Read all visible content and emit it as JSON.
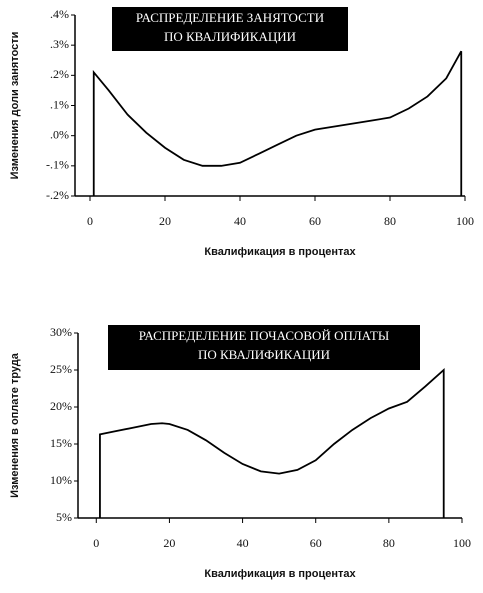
{
  "chart_data": [
    {
      "type": "area",
      "title": [
        "РАСПРЕДЕЛЕНИЕ ЗАНЯТОСТИ",
        "ПО КВАЛИФИКАЦИИ"
      ],
      "x_label": "Квалификация в процентах",
      "y_label": "Изменения доли занятости",
      "x": [
        1,
        5,
        10,
        15,
        20,
        25,
        30,
        35,
        40,
        45,
        50,
        55,
        60,
        65,
        70,
        75,
        80,
        85,
        90,
        95,
        99
      ],
      "values": [
        0.21,
        0.15,
        0.07,
        0.01,
        -0.04,
        -0.08,
        -0.1,
        -0.1,
        -0.09,
        -0.06,
        -0.03,
        0.0,
        0.02,
        0.03,
        0.04,
        0.05,
        0.06,
        0.09,
        0.13,
        0.19,
        0.28
      ],
      "color": "#000000",
      "xlim": [
        -4,
        100
      ],
      "xticks": [
        0,
        20,
        40,
        60,
        80,
        100
      ],
      "ylim": [
        -0.2,
        0.4
      ],
      "yticks": [
        {
          "value": -0.2,
          "label": "-.2%"
        },
        {
          "value": -0.1,
          "label": "-.1%"
        },
        {
          "value": 0,
          "label": ".0%"
        },
        {
          "value": 0.1,
          "label": ".1%"
        },
        {
          "value": 0.2,
          "label": ".2%"
        },
        {
          "value": 0.3,
          "label": ".3%"
        },
        {
          "value": 0.4,
          "label": ".4%"
        }
      ]
    },
    {
      "type": "area",
      "title": [
        "РАСПРЕДЕЛЕНИЕ ПОЧАСОВОЙ ОПЛАТЫ",
        "ПО КВАЛИФИКАЦИИ"
      ],
      "x_label": "Квалификация в процентах",
      "y_label": "Изменения в оплате труда",
      "x": [
        1,
        5,
        10,
        15,
        18,
        20,
        25,
        30,
        35,
        40,
        45,
        50,
        55,
        60,
        65,
        70,
        75,
        80,
        85,
        90,
        95
      ],
      "values": [
        16.3,
        16.7,
        17.2,
        17.7,
        17.8,
        17.7,
        16.9,
        15.5,
        13.8,
        12.3,
        11.3,
        11.0,
        11.5,
        12.8,
        15.0,
        16.9,
        18.5,
        19.8,
        20.7,
        22.8,
        25.0
      ],
      "color": "#000000",
      "xlim": [
        -5,
        100
      ],
      "xticks": [
        0,
        20,
        40,
        60,
        80,
        100
      ],
      "ylim": [
        5,
        30
      ],
      "yticks": [
        {
          "value": 5,
          "label": "5%"
        },
        {
          "value": 10,
          "label": "10%"
        },
        {
          "value": 15,
          "label": "15%"
        },
        {
          "value": 20,
          "label": "20%"
        },
        {
          "value": 25,
          "label": "25%"
        },
        {
          "value": 30,
          "label": "30%"
        }
      ]
    }
  ]
}
